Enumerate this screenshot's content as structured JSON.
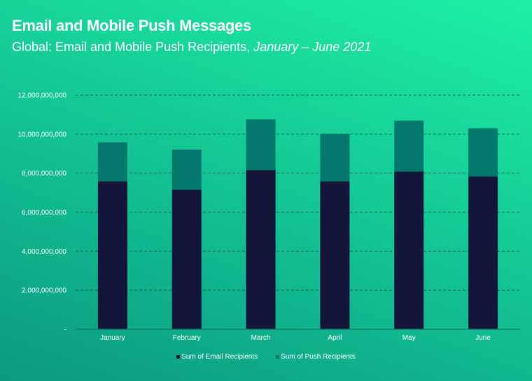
{
  "title": "Email and Mobile Push Messages",
  "subtitle_main": "Global: Email and Mobile Push Recipients, ",
  "subtitle_italic": "January – June 2021",
  "colors": {
    "email": "#13163a",
    "push": "#03786c",
    "grid": "#0b6a58"
  },
  "chart_data": {
    "type": "bar",
    "stacked": true,
    "title": "Email and Mobile Push Messages",
    "categories": [
      "January",
      "February",
      "March",
      "April",
      "May",
      "June"
    ],
    "series": [
      {
        "name": "Sum of Email Recipients",
        "values": [
          7580000000,
          7150000000,
          8150000000,
          7580000000,
          8080000000,
          7830000000
        ]
      },
      {
        "name": "Sum of Push Recipients",
        "values": [
          2000000000,
          2060000000,
          2610000000,
          2430000000,
          2610000000,
          2470000000
        ]
      }
    ],
    "yticks": [
      0,
      2000000000,
      4000000000,
      6000000000,
      8000000000,
      10000000000,
      12000000000
    ],
    "ytick_labels": [
      "-",
      "2,000,000,000",
      "4,000,000,000",
      "6,000,000,000",
      "8,000,000,000",
      "10,000,000,000",
      "12,000,000,000"
    ],
    "ylim": [
      0,
      12000000000
    ],
    "grid": true,
    "legend": "bottom-center",
    "xlabel": "",
    "ylabel": ""
  }
}
